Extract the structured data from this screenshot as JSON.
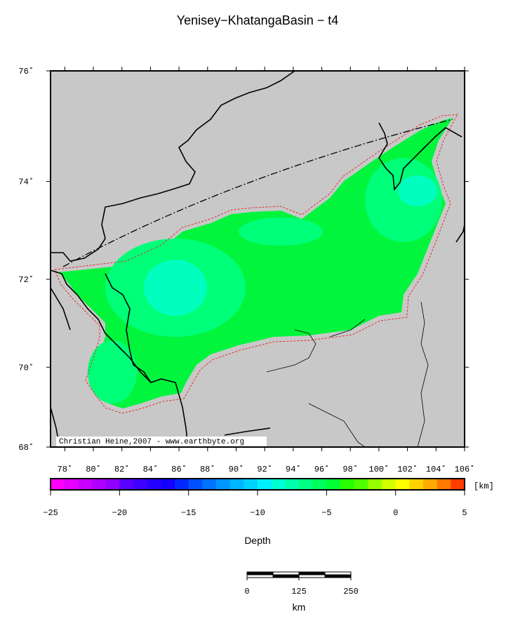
{
  "title": "Yenisey−KhatangaBasin − t4",
  "map": {
    "lonlim": [
      77,
      106
    ],
    "latlim": [
      68,
      76
    ],
    "projection": "mercator",
    "land_color": "#c8c8c8",
    "lonticks": [
      {
        "value": 78,
        "label": "78˚"
      },
      {
        "value": 80,
        "label": "80˚"
      },
      {
        "value": 82,
        "label": "82˚"
      },
      {
        "value": 84,
        "label": "84˚"
      },
      {
        "value": 86,
        "label": "86˚"
      },
      {
        "value": 88,
        "label": "88˚"
      },
      {
        "value": 90,
        "label": "90˚"
      },
      {
        "value": 92,
        "label": "92˚"
      },
      {
        "value": 94,
        "label": "94˚"
      },
      {
        "value": 96,
        "label": "96˚"
      },
      {
        "value": 98,
        "label": "98˚"
      },
      {
        "value": 100,
        "label": "100˚"
      },
      {
        "value": 102,
        "label": "102˚"
      },
      {
        "value": 104,
        "label": "104˚"
      },
      {
        "value": 106,
        "label": "106˚"
      }
    ],
    "latticks": [
      {
        "value": 76,
        "label": "76˚"
      },
      {
        "value": 74,
        "label": "74˚"
      },
      {
        "value": 72,
        "label": "72˚"
      },
      {
        "value": 70,
        "label": "70˚"
      },
      {
        "value": 68,
        "label": "68˚"
      }
    ],
    "credit": "Christian Heine,2007 - www.earthbyte.org"
  },
  "colorbar": {
    "range": [
      -25,
      5
    ],
    "ticks": [
      {
        "value": -25,
        "label": "−25"
      },
      {
        "value": -20,
        "label": "−20"
      },
      {
        "value": -15,
        "label": "−15"
      },
      {
        "value": -10,
        "label": "−10"
      },
      {
        "value": -5,
        "label": "−5"
      },
      0,
      5
    ],
    "colors": [
      "#ff00ff",
      "#e400ff",
      "#c800ff",
      "#ad00ff",
      "#9100ff",
      "#5a00ff",
      "#3f00ff",
      "#2400ff",
      "#1400ff",
      "#0028ff",
      "#0050ff",
      "#0073ff",
      "#0096ff",
      "#00b4ff",
      "#00d2ff",
      "#00f0ff",
      "#00ffd2",
      "#00ffaa",
      "#00ff82",
      "#00ff5a",
      "#00ff32",
      "#28ff00",
      "#50ff00",
      "#96ff00",
      "#d2ff00",
      "#ffff00",
      "#ffd200",
      "#ffaa00",
      "#ff7800",
      "#ff3c00"
    ],
    "unit": "[km]",
    "label": "Depth"
  },
  "scalebar": {
    "ticks": [
      0,
      125,
      250
    ],
    "unit": "km"
  }
}
